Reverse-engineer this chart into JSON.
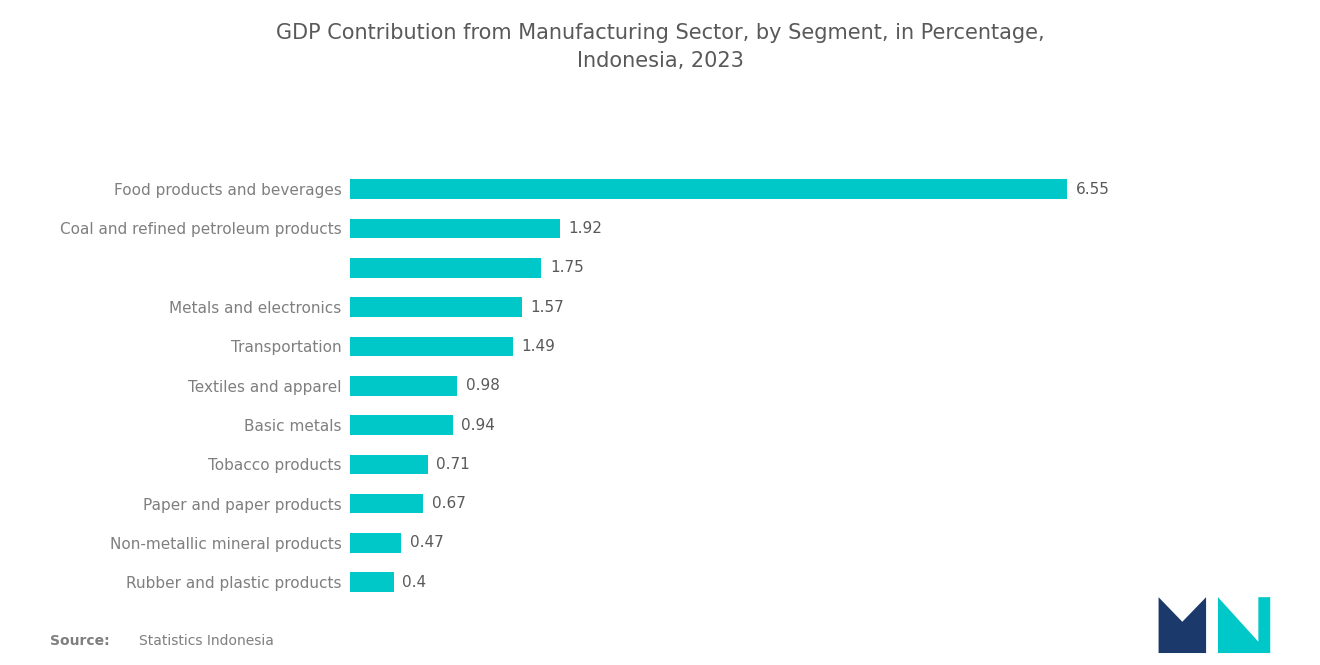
{
  "title": "GDP Contribution from Manufacturing Sector, by Segment, in Percentage,\nIndonesia, 2023",
  "categories": [
    "Food products and beverages",
    "Coal and refined petroleum products",
    "",
    "Metals and electronics",
    "Transportation",
    "Textiles and apparel",
    "Basic metals",
    "Tobacco products",
    "Paper and paper products",
    "Non-metallic mineral products",
    "Rubber and plastic products"
  ],
  "values": [
    6.55,
    1.92,
    1.75,
    1.57,
    1.49,
    0.98,
    0.94,
    0.71,
    0.67,
    0.47,
    0.4
  ],
  "bar_color": "#00C8C8",
  "label_color": "#7f7f7f",
  "value_color": "#595959",
  "background_color": "#FFFFFF",
  "title_color": "#595959",
  "title_fontsize": 15,
  "label_fontsize": 11,
  "value_fontsize": 11,
  "xlim_max": 8.2,
  "logo_left_color": "#1B3A6B",
  "logo_right_color": "#00C8C8"
}
